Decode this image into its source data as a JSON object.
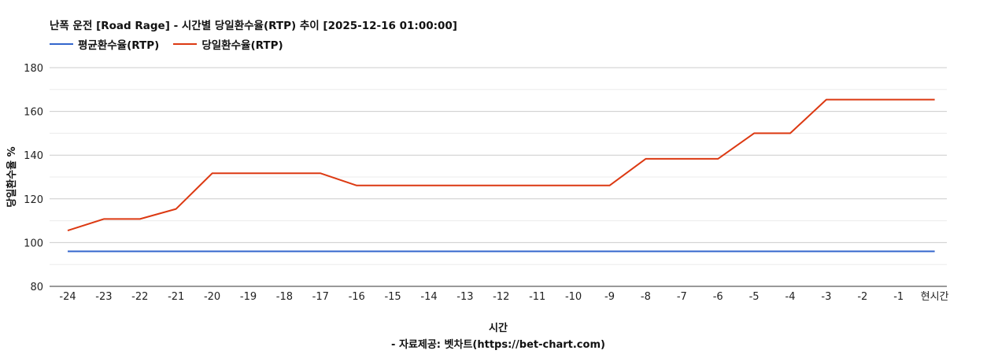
{
  "chart_data": {
    "type": "line",
    "title": "난폭 운전 [Road Rage] - 시간별 당일환수율(RTP) 추이 [2025-12-16 01:00:00]",
    "xlabel": "시간",
    "ylabel": "당일환수율 %",
    "source": "- 자료제공: 벳차트(https://bet-chart.com)",
    "categories": [
      "-24",
      "-23",
      "-22",
      "-21",
      "-20",
      "-19",
      "-18",
      "-17",
      "-16",
      "-15",
      "-14",
      "-13",
      "-12",
      "-11",
      "-10",
      "-9",
      "-8",
      "-7",
      "-6",
      "-5",
      "-4",
      "-3",
      "-2",
      "-1",
      "현시간"
    ],
    "ylim": [
      80,
      180
    ],
    "yticks": [
      80,
      100,
      120,
      140,
      160,
      180
    ],
    "grid": true,
    "legend_position": "top-left",
    "series": [
      {
        "name": "평균환수율(RTP)",
        "color": "#3366cc",
        "values": [
          96,
          96,
          96,
          96,
          96,
          96,
          96,
          96,
          96,
          96,
          96,
          96,
          96,
          96,
          96,
          96,
          96,
          96,
          96,
          96,
          96,
          96,
          96,
          96,
          96
        ]
      },
      {
        "name": "당일환수율(RTP)",
        "color": "#dc3912",
        "values": [
          105.5,
          110.8,
          110.8,
          115.4,
          131.7,
          131.7,
          131.7,
          131.7,
          126.1,
          126.1,
          126.1,
          126.1,
          126.1,
          126.1,
          126.1,
          126.1,
          138.3,
          138.3,
          138.3,
          150,
          150,
          165.4,
          165.4,
          165.4,
          165.4
        ]
      }
    ]
  }
}
